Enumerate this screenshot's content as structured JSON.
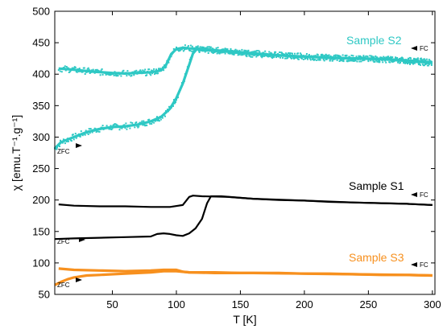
{
  "chart_data": {
    "type": "line",
    "xlabel": "T [K]",
    "ylabel": "χ [emu.T⁻¹.g⁻¹]",
    "xlim": [
      5,
      302
    ],
    "ylim": [
      50,
      500
    ],
    "xticks": [
      50,
      100,
      150,
      200,
      250,
      300
    ],
    "yticks": [
      50,
      100,
      150,
      200,
      250,
      300,
      350,
      400,
      450,
      500
    ],
    "grid": false,
    "series": [
      {
        "name": "Sample S2",
        "color": "#2ec8c4",
        "fc_label": "FC",
        "zfc_label": "ZFC",
        "fc": [
          [
            8,
            409
          ],
          [
            20,
            407
          ],
          [
            35,
            404
          ],
          [
            50,
            402
          ],
          [
            60,
            401
          ],
          [
            70,
            402
          ],
          [
            80,
            403
          ],
          [
            88,
            406
          ],
          [
            92,
            415
          ],
          [
            96,
            432
          ],
          [
            100,
            440
          ],
          [
            105,
            442
          ],
          [
            110,
            441
          ],
          [
            120,
            440
          ],
          [
            140,
            436
          ],
          [
            160,
            432
          ],
          [
            180,
            430
          ],
          [
            200,
            428
          ],
          [
            220,
            426
          ],
          [
            240,
            425
          ],
          [
            260,
            424
          ],
          [
            280,
            422
          ],
          [
            300,
            419
          ]
        ],
        "zfc": [
          [
            5,
            282
          ],
          [
            10,
            292
          ],
          [
            20,
            300
          ],
          [
            30,
            308
          ],
          [
            40,
            313
          ],
          [
            50,
            316
          ],
          [
            60,
            317
          ],
          [
            70,
            320
          ],
          [
            80,
            325
          ],
          [
            88,
            332
          ],
          [
            95,
            345
          ],
          [
            100,
            362
          ],
          [
            105,
            385
          ],
          [
            110,
            415
          ],
          [
            113,
            433
          ],
          [
            116,
            440
          ],
          [
            120,
            438
          ],
          [
            130,
            438
          ],
          [
            150,
            435
          ],
          [
            180,
            430
          ],
          [
            220,
            426
          ],
          [
            260,
            424
          ],
          [
            300,
            418
          ]
        ]
      },
      {
        "name": "Sample S1",
        "color": "#000000",
        "fc_label": "FC",
        "zfc_label": "ZFC",
        "fc": [
          [
            8,
            193
          ],
          [
            20,
            191
          ],
          [
            40,
            190
          ],
          [
            60,
            190
          ],
          [
            80,
            189
          ],
          [
            95,
            189
          ],
          [
            105,
            192
          ],
          [
            110,
            205
          ],
          [
            113,
            207
          ],
          [
            120,
            206
          ],
          [
            140,
            205
          ],
          [
            160,
            202
          ],
          [
            180,
            200
          ],
          [
            200,
            199
          ],
          [
            220,
            197
          ],
          [
            240,
            196
          ],
          [
            260,
            195
          ],
          [
            280,
            194
          ],
          [
            300,
            192
          ]
        ],
        "zfc": [
          [
            5,
            138
          ],
          [
            20,
            139
          ],
          [
            40,
            140
          ],
          [
            60,
            141
          ],
          [
            80,
            142
          ],
          [
            85,
            146
          ],
          [
            90,
            147
          ],
          [
            95,
            146
          ],
          [
            100,
            144
          ],
          [
            105,
            143
          ],
          [
            110,
            147
          ],
          [
            115,
            155
          ],
          [
            120,
            170
          ],
          [
            124,
            195
          ],
          [
            127,
            206
          ],
          [
            135,
            206
          ],
          [
            160,
            202
          ],
          [
            200,
            199
          ],
          [
            240,
            196
          ],
          [
            280,
            194
          ],
          [
            300,
            192
          ]
        ]
      },
      {
        "name": "Sample S3",
        "color": "#f7901e",
        "fc_label": "FC",
        "zfc_label": "ZFC",
        "fc": [
          [
            8,
            91
          ],
          [
            20,
            89
          ],
          [
            40,
            88
          ],
          [
            60,
            87
          ],
          [
            80,
            88
          ],
          [
            90,
            89
          ],
          [
            100,
            89
          ],
          [
            105,
            86
          ],
          [
            110,
            85
          ],
          [
            130,
            85
          ],
          [
            150,
            84
          ],
          [
            180,
            84
          ],
          [
            200,
            83
          ],
          [
            220,
            83
          ],
          [
            240,
            82
          ],
          [
            260,
            81
          ],
          [
            280,
            81
          ],
          [
            300,
            80
          ]
        ],
        "zfc": [
          [
            5,
            65
          ],
          [
            10,
            70
          ],
          [
            15,
            74
          ],
          [
            20,
            77
          ],
          [
            30,
            80
          ],
          [
            40,
            81
          ],
          [
            60,
            83
          ],
          [
            80,
            85
          ],
          [
            90,
            87
          ],
          [
            100,
            87
          ],
          [
            110,
            85
          ],
          [
            130,
            84
          ],
          [
            160,
            84
          ],
          [
            200,
            83
          ],
          [
            240,
            82
          ],
          [
            280,
            81
          ],
          [
            300,
            80
          ]
        ]
      }
    ]
  }
}
